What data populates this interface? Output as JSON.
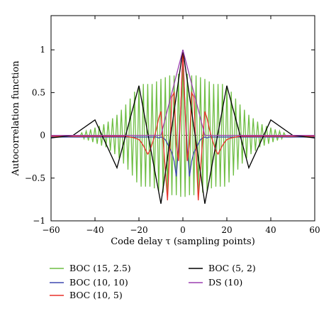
{
  "chart_data": {
    "type": "line",
    "title": "",
    "xlabel": "Code delay τ (sampling points)",
    "ylabel": "Autocorrelation function",
    "xlim": [
      -60,
      60
    ],
    "ylim": [
      -1,
      1.4
    ],
    "xticks": [
      -60,
      -40,
      -20,
      0,
      20,
      40,
      60
    ],
    "yticks": [
      -1,
      -0.5,
      0,
      0.5,
      1
    ],
    "grid": false,
    "legend_placement": "below",
    "series": [
      {
        "name": "BOC (15, 2.5)",
        "color": "#6fbe44",
        "x": [
          -60,
          -47,
          -46,
          -45,
          -44,
          -43,
          -42,
          -41,
          -40,
          -39,
          -38,
          -37,
          -36,
          -35,
          -34,
          -33,
          -32,
          -31,
          -30,
          -29,
          -28,
          -27,
          -26,
          -25,
          -24,
          -23,
          -22,
          -21,
          -20,
          -19,
          -18,
          -17,
          -16,
          -15,
          -14,
          -13,
          -12,
          -11,
          -10,
          -9,
          -8,
          -7,
          -6,
          -5,
          -4,
          -3,
          -2,
          -1,
          0,
          1,
          2,
          3,
          4,
          5,
          6,
          7,
          8,
          9,
          10,
          11,
          12,
          13,
          14,
          15,
          16,
          17,
          18,
          19,
          20,
          21,
          22,
          23,
          24,
          25,
          26,
          27,
          28,
          29,
          30,
          31,
          32,
          33,
          34,
          35,
          36,
          37,
          38,
          39,
          40,
          41,
          42,
          43,
          44,
          45,
          46,
          47,
          60
        ],
        "y": [
          -0.02,
          -0.02,
          0.03,
          -0.04,
          0.05,
          -0.06,
          0.07,
          -0.08,
          0.09,
          -0.1,
          0.11,
          -0.12,
          0.13,
          -0.14,
          0.16,
          -0.18,
          0.2,
          -0.22,
          0.24,
          -0.27,
          0.3,
          -0.33,
          0.36,
          -0.4,
          0.43,
          -0.47,
          0.51,
          -0.55,
          0.58,
          -0.6,
          0.6,
          -0.6,
          0.6,
          -0.6,
          0.6,
          -0.62,
          0.63,
          -0.65,
          0.66,
          -0.67,
          0.68,
          -0.69,
          0.7,
          -0.7,
          0.7,
          -0.7,
          0.72,
          -0.72,
          1.0,
          -0.72,
          0.72,
          -0.7,
          0.7,
          -0.7,
          0.7,
          -0.69,
          0.68,
          -0.67,
          0.66,
          -0.65,
          0.63,
          -0.62,
          0.6,
          -0.6,
          0.6,
          -0.6,
          0.6,
          -0.6,
          0.58,
          -0.55,
          0.51,
          -0.47,
          0.43,
          -0.4,
          0.36,
          -0.33,
          0.3,
          -0.27,
          0.24,
          -0.22,
          0.2,
          -0.18,
          0.16,
          -0.14,
          0.13,
          -0.12,
          0.11,
          -0.1,
          0.09,
          -0.08,
          0.07,
          -0.06,
          0.05,
          -0.04,
          0.03,
          -0.02,
          -0.02
        ]
      },
      {
        "name": "BOC (10, 10)",
        "color": "#3f48b0",
        "x": [
          -60,
          -12,
          -11,
          -10,
          -9,
          -8,
          -7,
          -6,
          -5,
          -4,
          -3,
          -2,
          -1,
          0,
          1,
          2,
          3,
          4,
          5,
          6,
          7,
          8,
          9,
          10,
          11,
          12,
          60
        ],
        "y": [
          -0.02,
          -0.02,
          -0.03,
          -0.02,
          -0.03,
          -0.05,
          -0.1,
          -0.15,
          -0.2,
          -0.3,
          -0.48,
          -0.15,
          0.3,
          1.0,
          0.3,
          -0.15,
          -0.48,
          -0.3,
          -0.2,
          -0.15,
          -0.1,
          -0.05,
          -0.03,
          -0.02,
          -0.03,
          -0.02,
          -0.02
        ]
      },
      {
        "name": "BOC (10, 5)",
        "color": "#e8312a",
        "x": [
          -60,
          -26,
          -24,
          -22,
          -20,
          -19,
          -18,
          -17,
          -16,
          -15,
          -14,
          -13,
          -12,
          -11,
          -10,
          -9,
          -8,
          -7,
          -6,
          -5,
          -4,
          -3,
          -2,
          -1,
          0,
          1,
          2,
          3,
          4,
          5,
          6,
          7,
          8,
          9,
          10,
          11,
          12,
          13,
          14,
          15,
          16,
          17,
          18,
          19,
          20,
          22,
          24,
          26,
          60
        ],
        "y": [
          -0.01,
          -0.01,
          -0.02,
          -0.03,
          -0.05,
          -0.08,
          -0.12,
          -0.17,
          -0.22,
          -0.18,
          -0.1,
          -0.02,
          0.08,
          0.2,
          0.28,
          -0.05,
          -0.4,
          -0.76,
          -0.2,
          0.45,
          0.5,
          -0.1,
          -0.3,
          0.3,
          0.98,
          0.3,
          -0.3,
          -0.1,
          0.5,
          0.45,
          -0.2,
          -0.76,
          -0.4,
          -0.05,
          0.28,
          0.2,
          0.08,
          -0.02,
          -0.1,
          -0.18,
          -0.22,
          -0.17,
          -0.12,
          -0.08,
          -0.05,
          -0.03,
          -0.02,
          -0.01,
          -0.01
        ]
      },
      {
        "name": "BOC (5, 2)",
        "color": "#000000",
        "x": [
          -60,
          -50,
          -40,
          -30,
          -20,
          -10,
          -5,
          0,
          5,
          10,
          20,
          30,
          40,
          50,
          60
        ],
        "y": [
          -0.03,
          0.0,
          0.18,
          -0.38,
          0.58,
          -0.8,
          0.1,
          1.0,
          0.1,
          -0.8,
          0.58,
          -0.38,
          0.18,
          0.0,
          -0.03
        ]
      },
      {
        "name": "DS (10)",
        "color": "#9b3fb0",
        "x": [
          -60,
          -10,
          0,
          10,
          60
        ],
        "y": [
          0.0,
          0.0,
          1.0,
          0.0,
          0.0
        ]
      }
    ]
  }
}
